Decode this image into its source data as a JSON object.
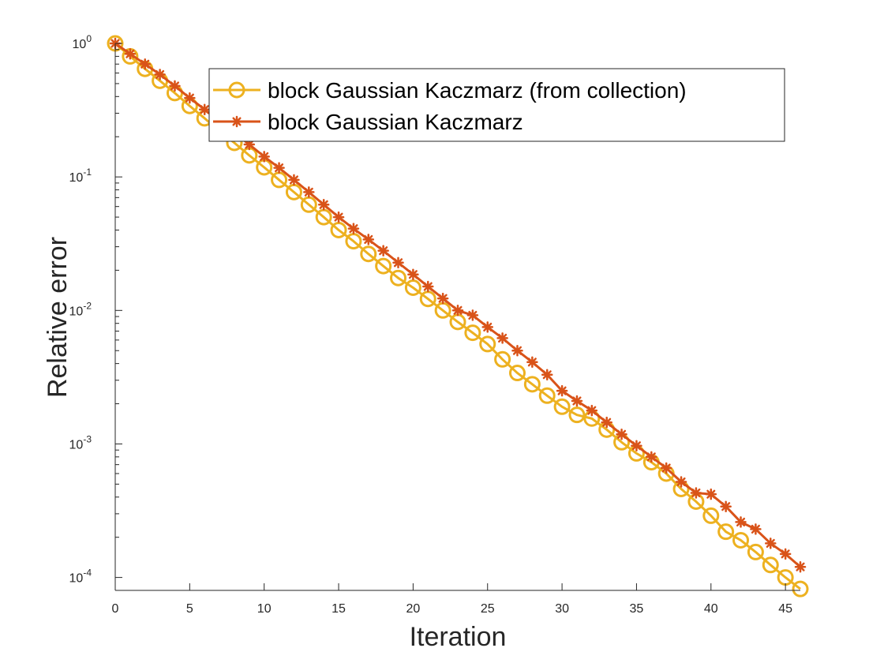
{
  "chart_data": {
    "type": "line",
    "title": "",
    "xlabel": "Iteration",
    "ylabel": "Relative error",
    "xlim": [
      0,
      46
    ],
    "ylim": [
      8e-05,
      1.0
    ],
    "yscale": "log",
    "grid": false,
    "legend_position": "top-right",
    "x_ticks": [
      0,
      5,
      10,
      15,
      20,
      25,
      30,
      35,
      40,
      45
    ],
    "y_ticks": [
      {
        "value": 1,
        "base": "10",
        "exp": "0"
      },
      {
        "value": 0.1,
        "base": "10",
        "exp": "-1"
      },
      {
        "value": 0.01,
        "base": "10",
        "exp": "-2"
      },
      {
        "value": 0.001,
        "base": "10",
        "exp": "-3"
      },
      {
        "value": 0.0001,
        "base": "10",
        "exp": "-4"
      }
    ],
    "series": [
      {
        "name": "block Gaussian Kaczmarz (from collection)",
        "color": "#EDB120",
        "marker": "circle",
        "x": [
          0,
          1,
          2,
          3,
          4,
          5,
          6,
          7,
          8,
          9,
          10,
          11,
          12,
          13,
          14,
          15,
          16,
          17,
          18,
          19,
          20,
          21,
          22,
          23,
          24,
          25,
          26,
          27,
          28,
          29,
          30,
          31,
          32,
          33,
          34,
          35,
          36,
          37,
          38,
          39,
          40,
          41,
          42,
          43,
          44,
          45,
          46
        ],
        "y": [
          1.0,
          0.8,
          0.645,
          0.525,
          0.425,
          0.34,
          0.275,
          0.22,
          0.18,
          0.145,
          0.118,
          0.095,
          0.077,
          0.062,
          0.05,
          0.04,
          0.033,
          0.0265,
          0.0215,
          0.0175,
          0.0148,
          0.0122,
          0.01,
          0.0082,
          0.0068,
          0.0056,
          0.0043,
          0.0034,
          0.0028,
          0.0023,
          0.0019,
          0.00165,
          0.00155,
          0.00128,
          0.00103,
          0.00085,
          0.00073,
          0.0006,
          0.00046,
          0.00037,
          0.00029,
          0.00022,
          0.00019,
          0.000155,
          0.000124,
          0.0001,
          8.2e-05
        ]
      },
      {
        "name": "block Gaussian Kaczmarz",
        "color": "#D95319",
        "marker": "asterisk",
        "x": [
          0,
          1,
          2,
          3,
          4,
          5,
          6,
          7,
          8,
          9,
          10,
          11,
          12,
          13,
          14,
          15,
          16,
          17,
          18,
          19,
          20,
          21,
          22,
          23,
          24,
          25,
          26,
          27,
          28,
          29,
          30,
          31,
          32,
          33,
          34,
          35,
          36,
          37,
          38,
          39,
          40,
          41,
          42,
          43,
          44,
          45,
          46
        ],
        "y": [
          1.0,
          0.835,
          0.7,
          0.585,
          0.48,
          0.39,
          0.32,
          0.26,
          0.215,
          0.175,
          0.142,
          0.117,
          0.095,
          0.077,
          0.062,
          0.05,
          0.041,
          0.034,
          0.028,
          0.0228,
          0.0186,
          0.0151,
          0.0123,
          0.01,
          0.0092,
          0.0075,
          0.0062,
          0.005,
          0.0041,
          0.0033,
          0.0025,
          0.0021,
          0.00178,
          0.00145,
          0.00118,
          0.00097,
          0.0008,
          0.00066,
          0.00052,
          0.00043,
          0.00042,
          0.00034,
          0.00026,
          0.00023,
          0.00018,
          0.00015,
          0.00012
        ]
      }
    ]
  }
}
